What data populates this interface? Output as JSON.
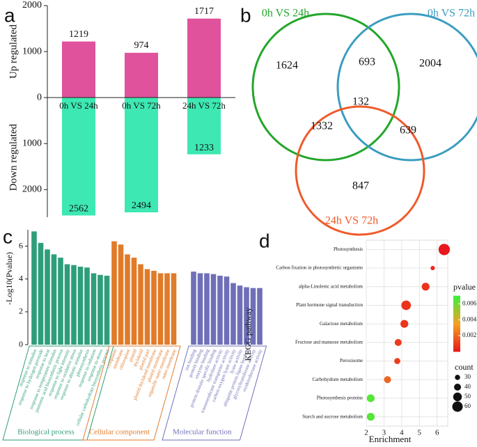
{
  "chart_data": [
    {
      "type": "diverging_bar",
      "annotation": "a",
      "categories": [
        "0h VS 24h",
        "0h VS 72h",
        "24h VS 72h"
      ],
      "series": [
        {
          "name": "Up regulated",
          "color": "#e0529c",
          "values": [
            1219,
            974,
            1717
          ]
        },
        {
          "name": "Down regulated",
          "color": "#3de8b2",
          "values": [
            -2562,
            -2494,
            -1233
          ],
          "value_labels": [
            "2562",
            "2494",
            "1233"
          ]
        }
      ],
      "ylim": [
        -2600,
        2000
      ],
      "yticks": [
        {
          "value": -2000,
          "label": "2000"
        },
        {
          "value": -1000,
          "label": "1000"
        },
        0,
        1000,
        2000
      ]
    },
    {
      "type": "venn",
      "annotation": "b",
      "sets": [
        {
          "name": "0h VS 24h",
          "color": "#22a62a"
        },
        {
          "name": "0h VS 72h",
          "color": "#3a9dbf"
        },
        {
          "name": "24h VS 72h",
          "color": "#ee5a2a"
        }
      ],
      "values": [
        1624,
        2004,
        847,
        693,
        1332,
        639,
        132
      ]
    },
    {
      "type": "grouped_bar",
      "annotation": "c",
      "ylabel": "-Log10(Pvalue)",
      "ylim": [
        0,
        7
      ],
      "yticks": [
        0,
        2,
        4,
        6
      ],
      "groups": [
        {
          "name": "Biological process",
          "color": "#2e9e7a",
          "categories": [
            "response to stimulus",
            "response to hydrogen peroxide",
            "response to heat",
            "response to temperature stimulus",
            "jasmonic acid biosynthetic process",
            "response to light intensity",
            "response to oxidative stress",
            "response to abiotic stimulus",
            "photosynthesis",
            "response to radiation",
            "response to stress",
            "cellular carbohydrate biosynthetic process"
          ],
          "values": [
            6.9,
            6.2,
            5.8,
            5.5,
            5.3,
            4.9,
            4.85,
            4.75,
            4.7,
            4.35,
            4.25,
            4.2
          ]
        },
        {
          "name": "Cellular component",
          "color": "#e07b2a",
          "categories": [
            "cytoplasm",
            "membrane",
            "chloroplast",
            "plastid",
            "thylakoid",
            "plastid part",
            "plastid thylakoid membrane",
            "plastid membrane",
            "organelle outer membrane",
            "outer membrane"
          ],
          "values": [
            6.3,
            6.1,
            5.5,
            5.3,
            4.9,
            4.6,
            4.5,
            4.35,
            4.35,
            4.35
          ]
        },
        {
          "name": "Molecular function",
          "color": "#6f6fb8",
          "categories": [
            "ion binding",
            "protein binding",
            "enzyme binding",
            "protein domain specific binding",
            "hydrolase activity",
            "transmembrane transporter activity",
            "carbon-oxygen lyase activity",
            "lyase activity",
            "ubiquitin protein ligase binding",
            "glycosyltransferase activity",
            "oxidoreductase activity"
          ],
          "values": [
            4.45,
            4.35,
            4.35,
            4.3,
            4.2,
            4.15,
            3.75,
            3.6,
            3.5,
            3.45,
            3.45
          ]
        }
      ]
    },
    {
      "type": "bubble",
      "annotation": "d",
      "xlabel": "Enrichment",
      "ylabel": "KEGG pathway",
      "categories": [
        "Photosynthesis",
        "Carbon fixation in photosynthetic organisms",
        "alpha-Linolenic acid metabolism",
        "Plant hormone signal transduction",
        "Galactose metabolism",
        "Fructose and mannose metabolism",
        "Peroxisome",
        "Carbohydrate metabolism",
        "Photosynthesis proteins",
        "Starch and sucrose metabolism"
      ],
      "x": [
        6.4,
        5.75,
        5.35,
        4.25,
        4.15,
        3.8,
        3.75,
        3.2,
        2.25,
        2.25
      ],
      "pvalue": [
        0.0001,
        0.0005,
        0.0008,
        0.0008,
        0.0008,
        0.001,
        0.001,
        0.002,
        0.0065,
        0.0065
      ],
      "count": [
        65,
        25,
        45,
        55,
        45,
        40,
        35,
        40,
        45,
        45
      ],
      "xlim": [
        2,
        6.6
      ],
      "xticks": [
        2,
        3,
        4,
        5,
        6
      ],
      "grid": true,
      "color_title": "pvalue",
      "colorlim": [
        0,
        0.007
      ],
      "colorticks": [
        0.002,
        0.004,
        0.006
      ],
      "colormap": [
        "#e8141c",
        "#f5a020",
        "#3cf03c"
      ],
      "size_title": "count",
      "sizeticks": [
        30,
        40,
        50,
        60
      ]
    }
  ]
}
